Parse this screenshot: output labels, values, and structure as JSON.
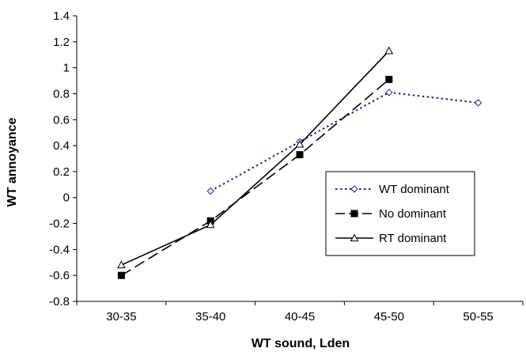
{
  "chart_data": {
    "type": "line",
    "title": "",
    "xlabel": "WT sound, Lden",
    "ylabel": "WT annoyance",
    "categories": [
      "30-35",
      "35-40",
      "40-45",
      "45-50",
      "50-55"
    ],
    "ylim": [
      -0.8,
      1.4
    ],
    "yticks": [
      "-0.8",
      "-0.6",
      "-0.4",
      "-0.2",
      "0",
      "0.2",
      "0.4",
      "0.6",
      "0.8",
      "1",
      "1.2",
      "1.4"
    ],
    "grid": false,
    "legend_position": "right",
    "series": [
      {
        "name": "WT dominant",
        "values": [
          null,
          0.05,
          0.43,
          0.81,
          0.73
        ],
        "color": "#1f1f9a",
        "line": "dotted",
        "marker": "diamond-open"
      },
      {
        "name": "No dominant",
        "values": [
          -0.6,
          -0.18,
          0.33,
          0.91,
          null
        ],
        "color": "#000000",
        "line": "dashed",
        "marker": "square-filled"
      },
      {
        "name": "RT dominant",
        "values": [
          -0.52,
          -0.21,
          0.41,
          1.13,
          null
        ],
        "color": "#000000",
        "line": "solid",
        "marker": "triangle-open"
      }
    ]
  }
}
